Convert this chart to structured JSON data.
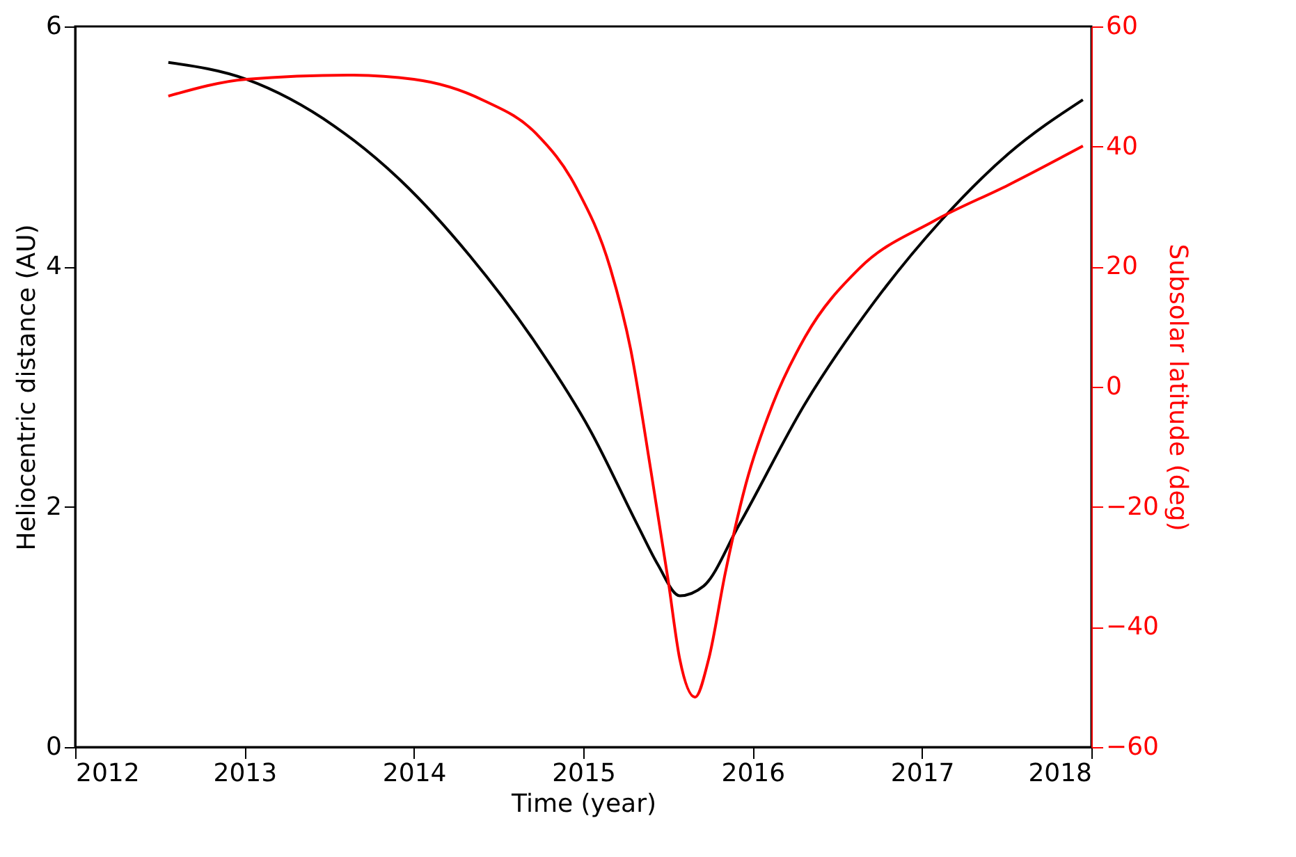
{
  "chart_data": {
    "type": "line",
    "xlabel": "Time (year)",
    "ylabel": "Heliocentric distance (AU)",
    "y2label": "Subsolar latitude (deg)",
    "xlim": [
      2012,
      2018
    ],
    "xticks": [
      2012,
      2013,
      2014,
      2015,
      2016,
      2017,
      2018
    ],
    "ylim": [
      0,
      6
    ],
    "yticks": [
      0,
      2,
      4,
      6
    ],
    "y2lim": [
      -60,
      60
    ],
    "y2ticks": [
      -60,
      -40,
      -20,
      0,
      20,
      40,
      60
    ],
    "grid": false,
    "legend": false,
    "series": [
      {
        "color": "#000000",
        "x": [
          2012.55,
          2013.01,
          2013.53,
          2013.92,
          2014.33,
          2014.72,
          2015.04,
          2015.32,
          2015.44,
          2015.57,
          2015.71,
          2015.92,
          2016.31,
          2016.72,
          2017.11,
          2017.51,
          2017.95
        ],
        "values": [
          5.7,
          5.56,
          5.17,
          4.72,
          4.09,
          3.36,
          2.64,
          1.85,
          1.52,
          1.26,
          1.34,
          1.85,
          2.86,
          3.71,
          4.38,
          4.94,
          5.39
        ]
      },
      {
        "color": "#ff0000",
        "axis": "y2",
        "x": [
          2012.55,
          2013.01,
          2013.61,
          2014.0,
          2014.41,
          2014.72,
          2014.96,
          2015.16,
          2015.28,
          2015.4,
          2015.5,
          2015.57,
          2015.66,
          2015.74,
          2015.84,
          2015.96,
          2016.12,
          2016.31,
          2016.63,
          2017.07,
          2017.51,
          2017.95
        ],
        "values": [
          48.4,
          51.2,
          51.9,
          51.2,
          47.7,
          42.2,
          33.1,
          19.7,
          6.2,
          -14.1,
          -32.0,
          -45.4,
          -51.7,
          -45.4,
          -30.8,
          -16.2,
          -2.8,
          8.3,
          19.7,
          27.6,
          33.6,
          40.1
        ]
      }
    ]
  }
}
